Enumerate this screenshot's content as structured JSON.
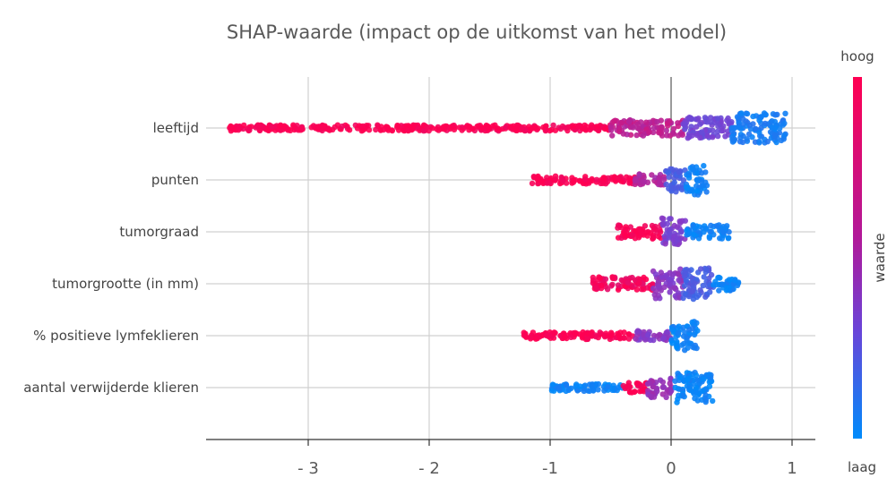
{
  "chart_data": {
    "type": "scatter",
    "subtype": "shap-beeswarm-summary",
    "title": "SHAP-waarde (impact op de uitkomst van het model)",
    "xlim": [
      -3.8,
      1.2
    ],
    "x_ticks": [
      {
        "value": -3,
        "label": "- 3"
      },
      {
        "value": -2,
        "label": "- 2"
      },
      {
        "value": -1,
        "label": "-1"
      },
      {
        "value": 0,
        "label": "0"
      },
      {
        "value": 1,
        "label": "1"
      }
    ],
    "grid": true,
    "zero_line": true,
    "features": [
      {
        "name": "leeftijd",
        "min": -3.65,
        "max": 0.95,
        "segments": [
          {
            "from": -3.65,
            "to": -0.5,
            "color_value": 1.0,
            "width": 0.15
          },
          {
            "from": -0.5,
            "to": 0.1,
            "color_value": 0.75,
            "width": 0.4
          },
          {
            "from": 0.1,
            "to": 0.5,
            "color_value": 0.45,
            "width": 0.55
          },
          {
            "from": 0.5,
            "to": 0.95,
            "color_value": 0.1,
            "width": 0.75
          }
        ]
      },
      {
        "name": "punten",
        "min": -1.15,
        "max": 0.3,
        "segments": [
          {
            "from": -1.15,
            "to": -0.3,
            "color_value": 1.0,
            "width": 0.2
          },
          {
            "from": -0.3,
            "to": -0.05,
            "color_value": 0.7,
            "width": 0.3
          },
          {
            "from": -0.05,
            "to": 0.12,
            "color_value": 0.3,
            "width": 0.6
          },
          {
            "from": 0.12,
            "to": 0.3,
            "color_value": 0.05,
            "width": 0.8
          }
        ]
      },
      {
        "name": "tumorgraad",
        "min": -0.45,
        "max": 0.48,
        "segments": [
          {
            "from": -0.45,
            "to": -0.08,
            "color_value": 1.0,
            "width": 0.35
          },
          {
            "from": -0.08,
            "to": 0.12,
            "color_value": 0.5,
            "width": 0.7
          },
          {
            "from": 0.12,
            "to": 0.48,
            "color_value": 0.05,
            "width": 0.35
          }
        ]
      },
      {
        "name": "tumorgrootte (in mm)",
        "min": -0.65,
        "max": 0.58,
        "segments": [
          {
            "from": -0.65,
            "to": -0.15,
            "color_value": 0.95,
            "width": 0.35
          },
          {
            "from": -0.15,
            "to": 0.1,
            "color_value": 0.55,
            "width": 0.75
          },
          {
            "from": 0.1,
            "to": 0.35,
            "color_value": 0.3,
            "width": 0.8
          },
          {
            "from": 0.35,
            "to": 0.58,
            "color_value": 0.05,
            "width": 0.35
          }
        ]
      },
      {
        "name": "% positieve lymfeklieren",
        "min": -1.22,
        "max": 0.22,
        "segments": [
          {
            "from": -1.22,
            "to": -0.3,
            "color_value": 1.0,
            "width": 0.18
          },
          {
            "from": -0.3,
            "to": 0.0,
            "color_value": 0.55,
            "width": 0.25
          },
          {
            "from": 0.0,
            "to": 0.22,
            "color_value": 0.05,
            "width": 0.75
          }
        ]
      },
      {
        "name": "aantal verwijderde klieren",
        "min": -1.0,
        "max": 0.35,
        "segments": [
          {
            "from": -1.0,
            "to": -0.4,
            "color_value": 0.05,
            "width": 0.18
          },
          {
            "from": -0.4,
            "to": -0.2,
            "color_value": 1.0,
            "width": 0.25
          },
          {
            "from": -0.2,
            "to": 0.02,
            "color_value": 0.6,
            "width": 0.5
          },
          {
            "from": 0.02,
            "to": 0.35,
            "color_value": 0.05,
            "width": 0.8
          }
        ]
      }
    ],
    "colorbar": {
      "label": "waarde",
      "high_label": "hoog",
      "low_label": "laag",
      "high_color": "#ff0052",
      "mid_color": "#7b3fd0",
      "low_color": "#008bfb"
    },
    "colors": {
      "grid": "#d0d0d0",
      "axis": "#333333"
    }
  }
}
